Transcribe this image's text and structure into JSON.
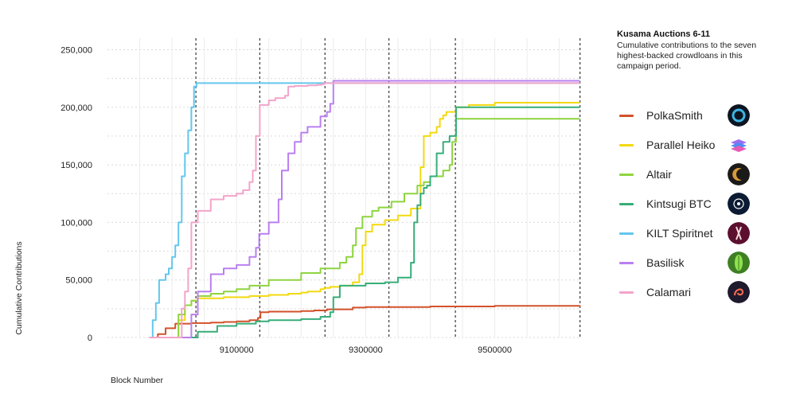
{
  "chart_data": {
    "type": "line",
    "ylabel": "Cumulative Contributions",
    "xlabel": "Block Number",
    "xlim": [
      8900000,
      9630000
    ],
    "ylim": [
      0,
      260000
    ],
    "x_ticks": [
      9100000,
      9300000,
      9500000
    ],
    "x_tick_labels": [
      "9100000",
      "9300000",
      "9500000"
    ],
    "y_ticks": [
      0,
      50000,
      100000,
      150000,
      200000,
      250000
    ],
    "y_tick_labels": [
      "0",
      "50,000",
      "100,000",
      "150,000",
      "200,000",
      "250,000"
    ],
    "auction_boundaries": [
      9037000,
      9136000,
      9237000,
      9336000,
      9439000,
      9632000
    ],
    "grid": true,
    "series": [
      {
        "name": "PolkaSmith",
        "color": "#d2522a",
        "x": [
          8965000,
          8978000,
          8990000,
          9005000,
          9030000,
          9060000,
          9080000,
          9100000,
          9120000,
          9133000,
          9137000,
          9150000,
          9200000,
          9220000,
          9240000,
          9280000,
          9300000,
          9400000,
          9500000,
          9632000
        ],
        "y": [
          0,
          3000,
          8000,
          12000,
          12500,
          13000,
          13500,
          14000,
          15000,
          17000,
          22000,
          22500,
          23000,
          23500,
          24500,
          26000,
          26500,
          27000,
          27500,
          28000
        ]
      },
      {
        "name": "Parallel Heiko",
        "color": "#f3d90f",
        "x": [
          8965000,
          9000000,
          9010000,
          9020000,
          9030000,
          9040000,
          9080000,
          9120000,
          9150000,
          9180000,
          9200000,
          9210000,
          9230000,
          9236000,
          9245000,
          9260000,
          9280000,
          9290000,
          9295000,
          9300000,
          9310000,
          9330000,
          9350000,
          9370000,
          9385000,
          9390000,
          9400000,
          9410000,
          9415000,
          9420000,
          9425000,
          9440000,
          9460000,
          9500000,
          9632000
        ],
        "y": [
          0,
          0,
          15000,
          28000,
          32000,
          34000,
          35000,
          36000,
          37000,
          38000,
          39000,
          40000,
          42000,
          43000,
          44000,
          45000,
          48000,
          55000,
          80000,
          92000,
          98000,
          102000,
          106000,
          112000,
          148000,
          175000,
          178000,
          183000,
          190000,
          193000,
          196000,
          200000,
          202000,
          204000,
          204000
        ]
      },
      {
        "name": "Altair",
        "color": "#8ed440",
        "x": [
          8965000,
          9005000,
          9010000,
          9020000,
          9030000,
          9040000,
          9060000,
          9080000,
          9100000,
          9120000,
          9150000,
          9200000,
          9230000,
          9260000,
          9270000,
          9280000,
          9285000,
          9295000,
          9310000,
          9320000,
          9340000,
          9360000,
          9380000,
          9390000,
          9400000,
          9420000,
          9430000,
          9434000,
          9440000,
          9500000,
          9632000
        ],
        "y": [
          0,
          0,
          20000,
          28000,
          32000,
          36000,
          38000,
          40000,
          42000,
          45000,
          50000,
          56000,
          60000,
          65000,
          70000,
          80000,
          95000,
          105000,
          110000,
          113000,
          118000,
          125000,
          132000,
          135000,
          140000,
          145000,
          150000,
          170000,
          190000,
          190000,
          190000
        ]
      },
      {
        "name": "Kintsugi BTC",
        "color": "#37ad79",
        "x": [
          8965000,
          9020000,
          9040000,
          9070000,
          9100000,
          9130000,
          9150000,
          9200000,
          9230000,
          9245000,
          9250000,
          9260000,
          9300000,
          9330000,
          9350000,
          9370000,
          9375000,
          9380000,
          9385000,
          9390000,
          9395000,
          9400000,
          9410000,
          9420000,
          9430000,
          9440000,
          9500000,
          9632000
        ],
        "y": [
          0,
          0,
          5000,
          10000,
          12000,
          14000,
          15000,
          16000,
          18000,
          22000,
          35000,
          45000,
          47000,
          48000,
          52000,
          65000,
          100000,
          115000,
          125000,
          130000,
          132000,
          140000,
          160000,
          170000,
          175000,
          200000,
          200000,
          200000
        ]
      },
      {
        "name": "KILT Spiritnet",
        "color": "#63c6ec",
        "x": [
          8965000,
          8970000,
          8975000,
          8980000,
          8990000,
          8995000,
          9000000,
          9005000,
          9010000,
          9015000,
          9020000,
          9025000,
          9030000,
          9034000,
          9038000,
          9100000,
          9300000,
          9500000,
          9632000
        ],
        "y": [
          0,
          15000,
          30000,
          50000,
          55000,
          60000,
          70000,
          80000,
          100000,
          140000,
          160000,
          180000,
          200000,
          218000,
          221000,
          221000,
          221000,
          221000,
          221000
        ]
      },
      {
        "name": "Basilisk",
        "color": "#b97ff0",
        "x": [
          8965000,
          9025000,
          9030000,
          9040000,
          9060000,
          9080000,
          9100000,
          9120000,
          9130000,
          9135000,
          9150000,
          9165000,
          9170000,
          9180000,
          9190000,
          9200000,
          9210000,
          9230000,
          9240000,
          9245000,
          9250000,
          9300000,
          9500000,
          9632000
        ],
        "y": [
          0,
          0,
          20000,
          40000,
          55000,
          60000,
          63000,
          70000,
          78000,
          90000,
          100000,
          120000,
          145000,
          160000,
          170000,
          178000,
          183000,
          192000,
          196000,
          203000,
          223000,
          223000,
          223000,
          223000
        ]
      },
      {
        "name": "Calamari",
        "color": "#f3a4ca",
        "x": [
          8965000,
          9010000,
          9015000,
          9020000,
          9025000,
          9030000,
          9040000,
          9060000,
          9080000,
          9100000,
          9110000,
          9120000,
          9125000,
          9130000,
          9136000,
          9150000,
          9160000,
          9175000,
          9180000,
          9190000,
          9210000,
          9225000,
          9232000,
          9236000,
          9240000,
          9300000,
          9500000,
          9632000
        ],
        "y": [
          0,
          0,
          25000,
          40000,
          60000,
          100000,
          110000,
          120000,
          123000,
          125000,
          128000,
          135000,
          145000,
          175000,
          202000,
          206000,
          208000,
          210000,
          218000,
          218500,
          219000,
          219500,
          220000,
          221000,
          221000,
          221000,
          221000,
          221000
        ]
      }
    ]
  },
  "sidebar": {
    "title": "Kusama Auctions 6-11",
    "subtitle": "Cumulative contributions to the seven highest-backed crowdloans in this campaign period."
  },
  "legend": [
    {
      "label": "PolkaSmith",
      "color": "#d2522a",
      "icon": "polkasmith-icon"
    },
    {
      "label": "Parallel Heiko",
      "color": "#f3d90f",
      "icon": "parallel-heiko-icon"
    },
    {
      "label": "Altair",
      "color": "#8ed440",
      "icon": "altair-icon"
    },
    {
      "label": "Kintsugi BTC",
      "color": "#37ad79",
      "icon": "kintsugi-icon"
    },
    {
      "label": "KILT Spiritnet",
      "color": "#63c6ec",
      "icon": "kilt-icon"
    },
    {
      "label": "Basilisk",
      "color": "#b97ff0",
      "icon": "basilisk-icon"
    },
    {
      "label": "Calamari",
      "color": "#f3a4ca",
      "icon": "calamari-icon"
    }
  ]
}
